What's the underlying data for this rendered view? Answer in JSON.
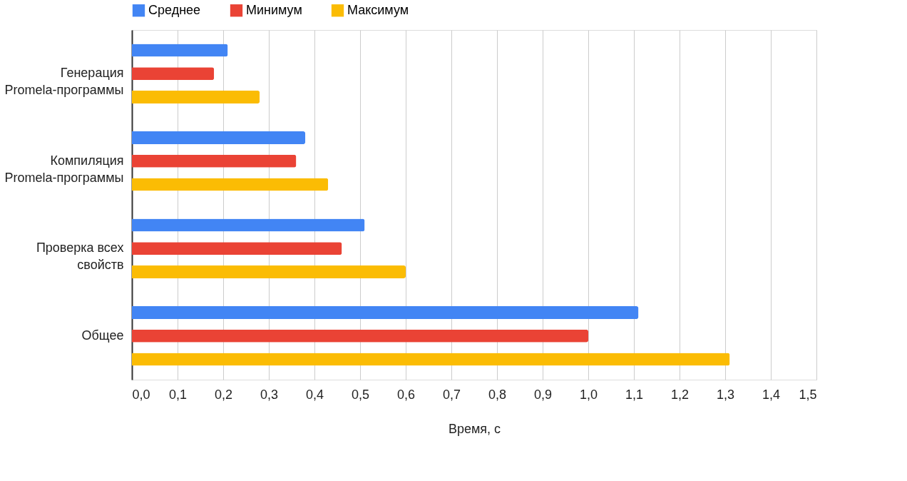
{
  "chart_data": {
    "type": "bar",
    "orientation": "horizontal",
    "xlabel": "Время, с",
    "categories": [
      "Генерация\nPromela-программы",
      "Компиляция\nPromela-программы",
      "Проверка всех\nсвойств",
      "Общее"
    ],
    "series": [
      {
        "name": "Среднее",
        "color": "#4285f4",
        "values": [
          0.21,
          0.38,
          0.51,
          1.11
        ]
      },
      {
        "name": "Минимум",
        "color": "#ea4335",
        "values": [
          0.18,
          0.36,
          0.46,
          1.0
        ]
      },
      {
        "name": "Максимум",
        "color": "#fbbc04",
        "values": [
          0.28,
          0.43,
          0.6,
          1.31
        ]
      }
    ],
    "xlim": [
      0,
      1.5
    ],
    "xticks": [
      {
        "value": 0,
        "label": "0,0"
      },
      {
        "value": 0.1,
        "label": "0,1"
      },
      {
        "value": 0.2,
        "label": "0,2"
      },
      {
        "value": 0.3,
        "label": "0,3"
      },
      {
        "value": 0.4,
        "label": "0,4"
      },
      {
        "value": 0.5,
        "label": "0,5"
      },
      {
        "value": 0.6,
        "label": "0,6"
      },
      {
        "value": 0.7,
        "label": "0,7"
      },
      {
        "value": 0.8,
        "label": "0,8"
      },
      {
        "value": 0.9,
        "label": "0,9"
      },
      {
        "value": 1.0,
        "label": "1,0"
      },
      {
        "value": 1.1,
        "label": "1,1"
      },
      {
        "value": 1.2,
        "label": "1,2"
      },
      {
        "value": 1.3,
        "label": "1,3"
      },
      {
        "value": 1.4,
        "label": "1,4"
      },
      {
        "value": 1.5,
        "label": "1,5"
      }
    ],
    "grid": "x",
    "legend": "top"
  }
}
